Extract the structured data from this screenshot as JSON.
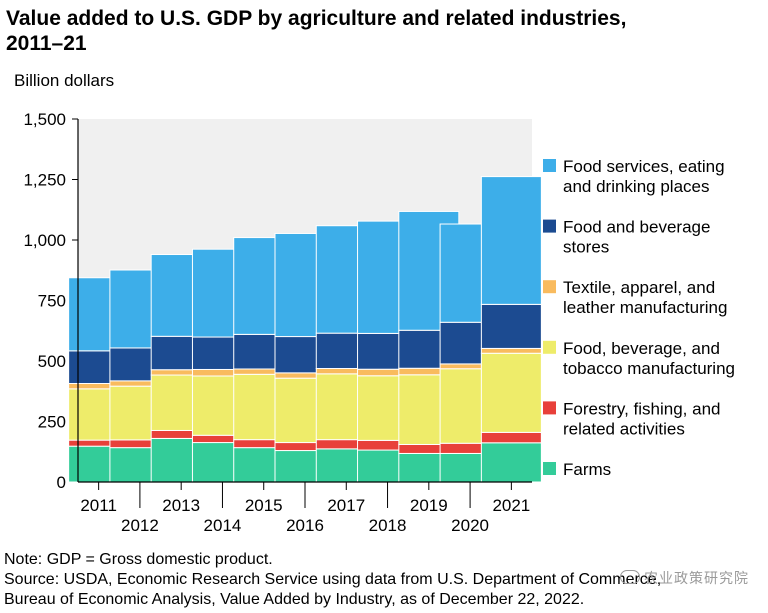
{
  "title": "Value added to U.S. GDP by agriculture and related industries, 2011–21",
  "note": "Note: GDP = Gross domestic product.",
  "source_line1": "Source: USDA, Economic Research Service using data from U.S. Department of Commerce,",
  "source_line2": "Bureau of Economic Analysis, Value Added by Industry, as of December 22, 2022.",
  "watermark": "农业政策研究院",
  "chart_data": {
    "type": "bar",
    "stacked": true,
    "title": "Value added to U.S. GDP by agriculture and related industries, 2011–21",
    "ylabel": "Billion dollars",
    "xlabel": "",
    "ylim": [
      0,
      1500
    ],
    "yticks": [
      0,
      250,
      500,
      750,
      1000,
      1250,
      1500
    ],
    "ytick_labels": [
      "0",
      "250",
      "500",
      "750",
      "1,000",
      "1,250",
      "1,500"
    ],
    "categories": [
      "2011",
      "2012",
      "2013",
      "2014",
      "2015",
      "2016",
      "2017",
      "2018",
      "2019",
      "2020",
      "2021"
    ],
    "legend_position": "right",
    "series": [
      {
        "name": "Farms",
        "color": "#33cc99",
        "values": [
          148,
          142,
          180,
          163,
          142,
          130,
          137,
          132,
          118,
          118,
          162
        ]
      },
      {
        "name": "Forestry, fishing, and related activities",
        "color": "#e8403a",
        "values": [
          25,
          32,
          33,
          30,
          33,
          33,
          38,
          40,
          37,
          42,
          43
        ]
      },
      {
        "name": "Food, beverage, and tobacco manufacturing",
        "color": "#eeec6a",
        "values": [
          212,
          222,
          229,
          245,
          270,
          266,
          272,
          267,
          288,
          308,
          327
        ]
      },
      {
        "name": "Textile, apparel, and leather manufacturing",
        "color": "#f9bb5e",
        "values": [
          22,
          22,
          22,
          27,
          22,
          22,
          22,
          27,
          27,
          20,
          20
        ]
      },
      {
        "name": "Food and beverage stores",
        "color": "#1c4b91",
        "values": [
          135,
          136,
          138,
          134,
          143,
          150,
          146,
          148,
          157,
          172,
          182
        ]
      },
      {
        "name": "Food services, eating and drinking places",
        "color": "#3daee9",
        "values": [
          302,
          322,
          338,
          363,
          400,
          426,
          444,
          464,
          491,
          406,
          528
        ]
      }
    ],
    "legend": [
      {
        "line1": "Food services, eating",
        "line2": "and drinking places"
      },
      {
        "line1": "Food and beverage",
        "line2": "stores"
      },
      {
        "line1": "Textile, apparel, and",
        "line2": "leather manufacturing"
      },
      {
        "line1": "Food, beverage, and",
        "line2": "tobacco manufacturing"
      },
      {
        "line1": "Forestry, fishing, and",
        "line2": "related activities"
      },
      {
        "line1": "Farms",
        "line2": ""
      }
    ]
  }
}
